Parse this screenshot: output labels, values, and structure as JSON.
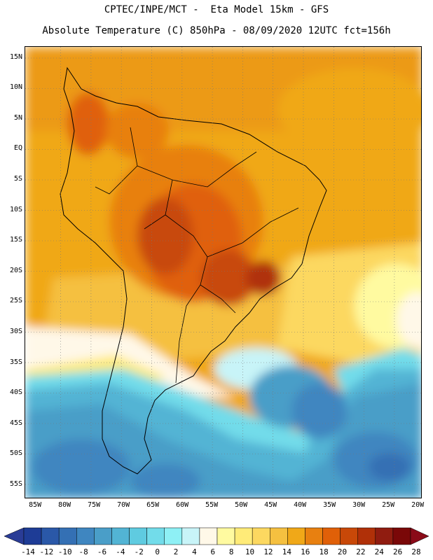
{
  "header": {
    "line1": "CPTEC/INPE/MCT -  Eta Model 15km - GFS",
    "line2": "Absolute Temperature (C) 850hPa - 08/09/2020 12UTC fct=156h"
  },
  "map": {
    "lat_labels": [
      "15N",
      "10N",
      "5N",
      "EQ",
      "5S",
      "10S",
      "15S",
      "20S",
      "25S",
      "30S",
      "35S",
      "40S",
      "45S",
      "50S",
      "55S"
    ],
    "lon_labels": [
      "85W",
      "80W",
      "75W",
      "70W",
      "65W",
      "60W",
      "55W",
      "50W",
      "45W",
      "40W",
      "35W",
      "30W",
      "25W",
      "20W"
    ],
    "lat_values": [
      15,
      10,
      5,
      0,
      -5,
      -10,
      -15,
      -20,
      -25,
      -30,
      -35,
      -40,
      -45,
      -50,
      -55
    ],
    "lon_values": [
      -85,
      -80,
      -75,
      -70,
      -65,
      -60,
      -55,
      -50,
      -45,
      -40,
      -35,
      -30,
      -25,
      -20
    ]
  },
  "colorbar": {
    "labels": [
      "-14",
      "-12",
      "-10",
      "-8",
      "-6",
      "-4",
      "-2",
      "0",
      "2",
      "4",
      "6",
      "8",
      "10",
      "12",
      "14",
      "16",
      "18",
      "20",
      "22",
      "24",
      "26",
      "28"
    ],
    "values": [
      -14,
      -12,
      -10,
      -8,
      -6,
      -4,
      -2,
      0,
      2,
      4,
      6,
      8,
      10,
      12,
      14,
      16,
      18,
      20,
      22,
      24,
      26,
      28
    ],
    "colors": [
      "#1e3c96",
      "#2a58a8",
      "#3470b4",
      "#3f86c0",
      "#4a9ec8",
      "#52b4d4",
      "#5fcbe0",
      "#72dcea",
      "#8ef0f5",
      "#c8f4f8",
      "#fff8e8",
      "#fffaa0",
      "#ffeb78",
      "#fcd860",
      "#f5c040",
      "#f0a818",
      "#e88010",
      "#e06008",
      "#c84808",
      "#b03008",
      "#901c10",
      "#7a0808"
    ],
    "low_color": "#2a3c96",
    "high_color": "#8a0a18"
  }
}
